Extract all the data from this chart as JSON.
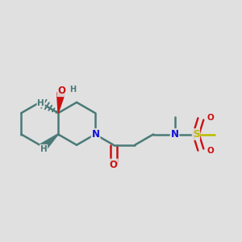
{
  "background_color": "#e0e0e0",
  "bond_color": "#4a7a78",
  "bond_width": 1.8,
  "atom_colors": {
    "N": "#1010dd",
    "O": "#cc1111",
    "S": "#bbbb00",
    "H": "#4a7a78"
  },
  "figsize": [
    3.0,
    3.0
  ],
  "dpi": 100,
  "xlim": [
    0.05,
    0.95
  ],
  "ylim": [
    0.15,
    0.85
  ]
}
